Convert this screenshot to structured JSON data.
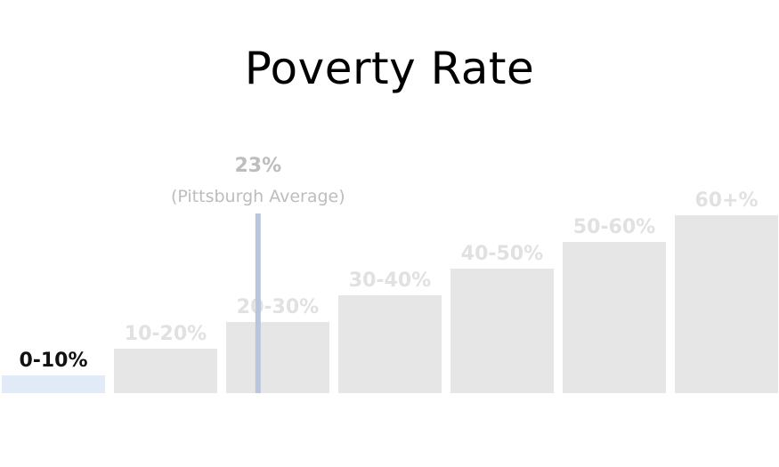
{
  "chart_data": {
    "type": "bar",
    "title": "Poverty Rate",
    "categories": [
      "0-10%",
      "10-20%",
      "20-30%",
      "30-40%",
      "40-50%",
      "50-60%",
      "60+%"
    ],
    "values": [
      1,
      2,
      3,
      4,
      5,
      6,
      7
    ],
    "highlighted_category": "0-10%",
    "reference_line": {
      "value": 23,
      "value_label": "23%",
      "caption": "(Pittsburgh Average)",
      "color": "#b8c5dc"
    }
  },
  "colors": {
    "bar_default": "#e6e6e6",
    "bar_highlight": "#e1eaf7",
    "label_default": "#e1e1e1",
    "label_highlight": "#111111",
    "reference_label": "#bdbdbd",
    "title": "#000000"
  }
}
